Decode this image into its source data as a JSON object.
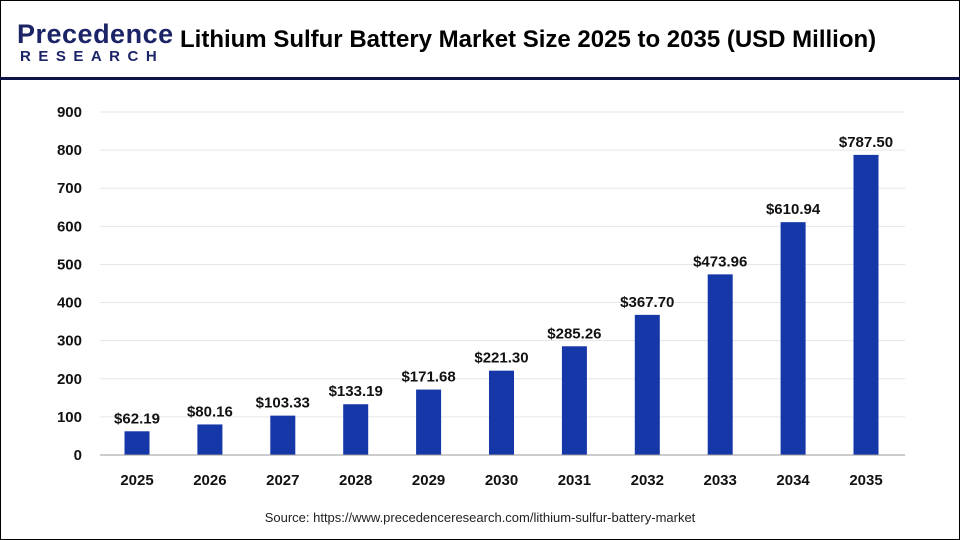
{
  "header": {
    "logo_line1": "Precedence",
    "logo_line2": "RESEARCH",
    "title": "Lithium Sulfur Battery Market Size 2025 to 2035 (USD Million)"
  },
  "source": "Source: https://www.precedenceresearch.com/lithium-sulfur-battery-market",
  "chart_data": {
    "type": "bar",
    "title": "Lithium Sulfur Battery Market Size 2025 to 2035 (USD Million)",
    "categories": [
      "2025",
      "2026",
      "2027",
      "2028",
      "2029",
      "2030",
      "2031",
      "2032",
      "2033",
      "2034",
      "2035"
    ],
    "values": [
      62.19,
      80.16,
      103.33,
      133.19,
      171.68,
      221.3,
      285.26,
      367.7,
      473.96,
      610.94,
      787.5
    ],
    "labels": [
      "$62.19",
      "$80.16",
      "$103.33",
      "$133.19",
      "$171.68",
      "$221.30",
      "$285.26",
      "$367.70",
      "$473.96",
      "$610.94",
      "$787.50"
    ],
    "yticks": [
      "0",
      "100",
      "200",
      "300",
      "400",
      "500",
      "600",
      "700",
      "800",
      "900"
    ],
    "ylim": [
      0,
      900
    ],
    "grid": true,
    "bar_color": "#1537a8"
  }
}
